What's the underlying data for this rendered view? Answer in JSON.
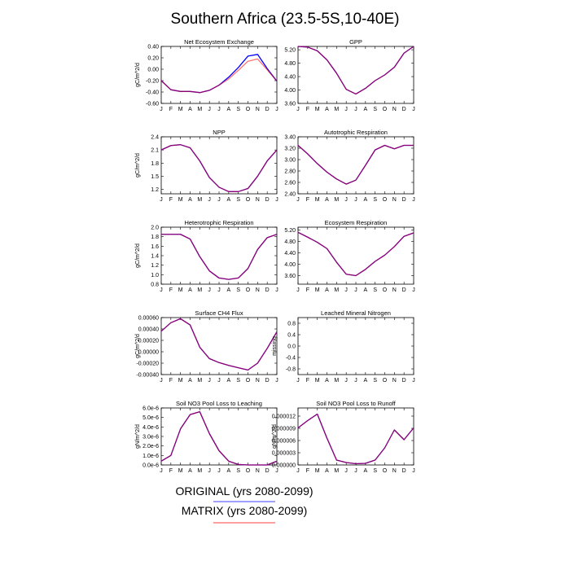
{
  "title": "Southern Africa (23.5-5S,10-40E)",
  "legend": [
    {
      "label": "ORIGINAL (yrs 2080-2099)",
      "color": "#0000ff"
    },
    {
      "label": "MATRIX (yrs 2080-2099)",
      "color": "#ff0000"
    }
  ],
  "month_labels": [
    "J",
    "F",
    "M",
    "A",
    "M",
    "J",
    "J",
    "A",
    "S",
    "O",
    "N",
    "D",
    "J"
  ],
  "chart_data": [
    {
      "type": "line",
      "title": "Net Ecosystem Exchange",
      "ylabel": "gC/m^2/d",
      "ylim": [
        -0.6,
        0.4
      ],
      "yticks": [
        "0.40",
        "0.20",
        "0.00",
        "-0.20",
        "-0.40",
        "-0.60"
      ],
      "ytick_values": [
        0.4,
        0.2,
        0.0,
        -0.2,
        -0.4,
        -0.6
      ],
      "x": [
        1,
        2,
        3,
        4,
        5,
        6,
        7,
        8,
        9,
        10,
        11,
        12,
        13
      ],
      "series": [
        {
          "color": "#0000ff",
          "values": [
            -0.2,
            -0.36,
            -0.39,
            -0.39,
            -0.41,
            -0.37,
            -0.28,
            -0.14,
            0.03,
            0.23,
            0.26,
            0.01,
            -0.21
          ]
        },
        {
          "color": "#ff0000",
          "values": [
            -0.2,
            -0.36,
            -0.39,
            -0.39,
            -0.41,
            -0.37,
            -0.28,
            -0.17,
            -0.02,
            0.14,
            0.18,
            -0.01,
            -0.21
          ]
        }
      ]
    },
    {
      "type": "line",
      "title": "GPP",
      "ylabel": "",
      "ylim": [
        3.6,
        5.3
      ],
      "yticks": [
        "5.20",
        "4.80",
        "4.40",
        "4.00",
        "3.60"
      ],
      "ytick_values": [
        5.2,
        4.8,
        4.4,
        4.0,
        3.6
      ],
      "x": [
        1,
        2,
        3,
        4,
        5,
        6,
        7,
        8,
        9,
        10,
        11,
        12,
        13
      ],
      "series": [
        {
          "color": "#0000ff",
          "values": [
            5.3,
            5.28,
            5.17,
            4.9,
            4.5,
            4.02,
            3.88,
            4.05,
            4.28,
            4.45,
            4.68,
            5.1,
            5.3
          ]
        },
        {
          "color": "#ff0000",
          "values": [
            5.3,
            5.28,
            5.17,
            4.9,
            4.5,
            4.02,
            3.88,
            4.05,
            4.28,
            4.45,
            4.68,
            5.1,
            5.3
          ]
        }
      ]
    },
    {
      "type": "line",
      "title": "NPP",
      "ylabel": "gC/m^2/d",
      "ylim": [
        1.1,
        2.4
      ],
      "yticks": [
        "2.4",
        "2.1",
        "1.8",
        "1.5",
        "1.2"
      ],
      "ytick_values": [
        2.4,
        2.1,
        1.8,
        1.5,
        1.2
      ],
      "x": [
        1,
        2,
        3,
        4,
        5,
        6,
        7,
        8,
        9,
        10,
        11,
        12,
        13
      ],
      "series": [
        {
          "color": "#0000ff",
          "values": [
            2.1,
            2.2,
            2.22,
            2.15,
            1.85,
            1.47,
            1.25,
            1.15,
            1.15,
            1.22,
            1.5,
            1.85,
            2.1
          ]
        },
        {
          "color": "#ff0000",
          "values": [
            2.1,
            2.2,
            2.22,
            2.15,
            1.85,
            1.47,
            1.25,
            1.15,
            1.15,
            1.22,
            1.5,
            1.85,
            2.1
          ]
        }
      ]
    },
    {
      "type": "line",
      "title": "Autotrophic Respiration",
      "ylabel": "",
      "ylim": [
        2.4,
        3.4
      ],
      "yticks": [
        "3.40",
        "3.20",
        "3.00",
        "2.80",
        "2.60",
        "2.40"
      ],
      "ytick_values": [
        3.4,
        3.2,
        3.0,
        2.8,
        2.6,
        2.4
      ],
      "x": [
        1,
        2,
        3,
        4,
        5,
        6,
        7,
        8,
        9,
        10,
        11,
        12,
        13
      ],
      "series": [
        {
          "color": "#0000ff",
          "values": [
            3.25,
            3.1,
            2.93,
            2.78,
            2.66,
            2.57,
            2.64,
            2.9,
            3.17,
            3.25,
            3.19,
            3.25,
            3.25
          ]
        },
        {
          "color": "#ff0000",
          "values": [
            3.25,
            3.1,
            2.93,
            2.78,
            2.66,
            2.57,
            2.64,
            2.9,
            3.17,
            3.25,
            3.19,
            3.25,
            3.25
          ]
        }
      ]
    },
    {
      "type": "line",
      "title": "Heterotrophic Respiration",
      "ylabel": "gC/m^2/d",
      "ylim": [
        0.8,
        2.0
      ],
      "yticks": [
        "2.0",
        "1.8",
        "1.6",
        "1.4",
        "1.2",
        "1.0",
        "0.8"
      ],
      "ytick_values": [
        2.0,
        1.8,
        1.6,
        1.4,
        1.2,
        1.0,
        0.8
      ],
      "x": [
        1,
        2,
        3,
        4,
        5,
        6,
        7,
        8,
        9,
        10,
        11,
        12,
        13
      ],
      "series": [
        {
          "color": "#0000ff",
          "values": [
            1.85,
            1.85,
            1.85,
            1.75,
            1.38,
            1.08,
            0.93,
            0.9,
            0.93,
            1.13,
            1.53,
            1.78,
            1.85
          ]
        },
        {
          "color": "#ff0000",
          "values": [
            1.85,
            1.85,
            1.85,
            1.75,
            1.38,
            1.08,
            0.93,
            0.9,
            0.93,
            1.13,
            1.53,
            1.78,
            1.85
          ]
        }
      ]
    },
    {
      "type": "line",
      "title": "Ecosystem Respiration",
      "ylabel": "",
      "ylim": [
        3.3,
        5.3
      ],
      "yticks": [
        "5.20",
        "4.80",
        "4.40",
        "4.00",
        "3.60"
      ],
      "ytick_values": [
        5.2,
        4.8,
        4.4,
        4.0,
        3.6
      ],
      "x": [
        1,
        2,
        3,
        4,
        5,
        6,
        7,
        8,
        9,
        10,
        11,
        12,
        13
      ],
      "series": [
        {
          "color": "#0000ff",
          "values": [
            5.12,
            4.95,
            4.77,
            4.55,
            4.07,
            3.65,
            3.6,
            3.82,
            4.1,
            4.32,
            4.62,
            4.98,
            5.1
          ]
        },
        {
          "color": "#ff0000",
          "values": [
            5.12,
            4.95,
            4.77,
            4.55,
            4.07,
            3.65,
            3.6,
            3.82,
            4.1,
            4.32,
            4.62,
            4.98,
            5.1
          ]
        }
      ]
    },
    {
      "type": "line",
      "title": "Surface CH4 Flux",
      "ylabel": "gC/m^2/d",
      "ylim": [
        -0.0004,
        0.0006
      ],
      "yticks": [
        "0.00060",
        "0.00040",
        "0.00020",
        "0.00000",
        "-0.00020",
        "-0.00040"
      ],
      "ytick_values": [
        0.0006,
        0.0004,
        0.0002,
        0.0,
        -0.0002,
        -0.0004
      ],
      "x": [
        1,
        2,
        3,
        4,
        5,
        6,
        7,
        8,
        9,
        10,
        11,
        12,
        13
      ],
      "series": [
        {
          "color": "#0000ff",
          "values": [
            0.00036,
            0.00051,
            0.00058,
            0.00047,
            8e-05,
            -0.00012,
            -0.00019,
            -0.00024,
            -0.00028,
            -0.00032,
            -0.0002,
            6e-05,
            0.00035
          ]
        },
        {
          "color": "#ff0000",
          "values": [
            0.00036,
            0.00051,
            0.00058,
            0.00047,
            8e-05,
            -0.00012,
            -0.00019,
            -0.00024,
            -0.00028,
            -0.00032,
            -0.0002,
            6e-05,
            0.00035
          ]
        }
      ]
    },
    {
      "type": "line",
      "title": "Leached Mineral Nitrogen",
      "ylabel": "missing",
      "ylim": [
        -1.0,
        1.0
      ],
      "yticks": [
        "0.8",
        "0.4",
        "0.0",
        "-0.4",
        "-0.8"
      ],
      "ytick_values": [
        0.8,
        0.4,
        0.0,
        -0.4,
        -0.8
      ],
      "x": [
        1,
        2,
        3,
        4,
        5,
        6,
        7,
        8,
        9,
        10,
        11,
        12,
        13
      ],
      "series": []
    },
    {
      "type": "line",
      "title": "Soil NO3 Pool Loss to Leaching",
      "ylabel": "gN/m^2/d",
      "ylim": [
        0,
        6e-06
      ],
      "yticks": [
        "6.0e-6",
        "5.0e-6",
        "4.0e-6",
        "3.0e-6",
        "2.0e-6",
        "1.0e-6",
        "0.0e-6"
      ],
      "ytick_values": [
        6e-06,
        5e-06,
        4e-06,
        3e-06,
        2e-06,
        1e-06,
        0
      ],
      "x": [
        1,
        2,
        3,
        4,
        5,
        6,
        7,
        8,
        9,
        10,
        11,
        12,
        13
      ],
      "series": [
        {
          "color": "#0000ff",
          "values": [
            4e-07,
            1e-06,
            3.8e-06,
            5.3e-06,
            5.6e-06,
            3.3e-06,
            1.5e-06,
            4e-07,
            5e-08,
            0,
            0,
            0,
            4e-07
          ]
        },
        {
          "color": "#ff0000",
          "values": [
            4e-07,
            1e-06,
            3.8e-06,
            5.3e-06,
            5.6e-06,
            3.3e-06,
            1.5e-06,
            4e-07,
            5e-08,
            0,
            0,
            0,
            4e-07
          ]
        }
      ]
    },
    {
      "type": "line",
      "title": "Soil NO3 Pool Loss to Runoff",
      "ylabel": "gN/m^2/d",
      "ylim": [
        0,
        1.4e-05
      ],
      "yticks": [
        "0.000012",
        "0.000009",
        "0.000006",
        "0.000003",
        "0.000000"
      ],
      "ytick_values": [
        1.2e-05,
        9e-06,
        6e-06,
        3e-06,
        0
      ],
      "x": [
        1,
        2,
        3,
        4,
        5,
        6,
        7,
        8,
        9,
        10,
        11,
        12,
        13
      ],
      "series": [
        {
          "color": "#0000ff",
          "values": [
            9.1e-06,
            1.09e-05,
            1.25e-05,
            6.6e-06,
            1.2e-06,
            6e-07,
            3e-07,
            4e-07,
            1.2e-06,
            4.2e-06,
            8.6e-06,
            6.2e-06,
            9.1e-06
          ]
        },
        {
          "color": "#ff0000",
          "values": [
            9.1e-06,
            1.09e-05,
            1.25e-05,
            6.6e-06,
            1.2e-06,
            6e-07,
            3e-07,
            4e-07,
            1.2e-06,
            4.2e-06,
            8.6e-06,
            6.2e-06,
            9.1e-06
          ]
        }
      ]
    }
  ]
}
